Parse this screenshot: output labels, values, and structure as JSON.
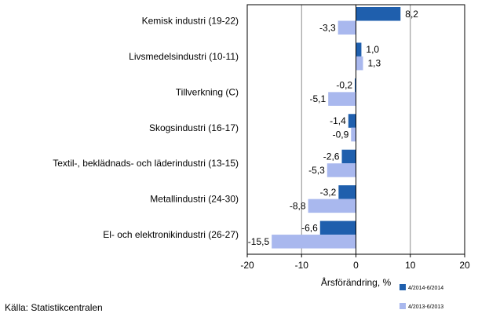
{
  "chart_data": {
    "type": "bar",
    "orientation": "horizontal",
    "categories": [
      "Kemisk industri (19-22)",
      "Livsmedelsindustri (10-11)",
      "Tillverkning (C)",
      "Skogsindustri (16-17)",
      "Textil-, beklädnads- och läderindustri (13-15)",
      "Metallindustri (24-30)",
      "El- och elektronikindustri (26-27)"
    ],
    "series": [
      {
        "name": "4/2014-6/2014",
        "values": [
          8.2,
          1.0,
          -0.2,
          -1.4,
          -2.6,
          -3.2,
          -6.6
        ],
        "labels": [
          "8,2",
          "1,0",
          "-0,2",
          "-1,4",
          "-2,6",
          "-3,2",
          "-6,6"
        ],
        "color": "#1f5fad"
      },
      {
        "name": "4/2013-6/2013",
        "values": [
          -3.3,
          1.3,
          -5.1,
          -0.9,
          -5.3,
          -8.8,
          -15.5
        ],
        "labels": [
          "-3,3",
          "1,3",
          "-5,1",
          "-0,9",
          "-5,3",
          "-8,8",
          "-15,5"
        ],
        "color": "#a9b8ee"
      }
    ],
    "xlabel": "Årsförändring, %",
    "xlim": [
      -20,
      20
    ],
    "xticks": [
      -20,
      -10,
      0,
      10,
      20
    ],
    "xtick_labels": [
      "-20",
      "-10",
      "0",
      "10",
      "20"
    ],
    "grid": "vertical",
    "legend_position": "bottom-right"
  },
  "source": "Källa: Statistikcentralen"
}
